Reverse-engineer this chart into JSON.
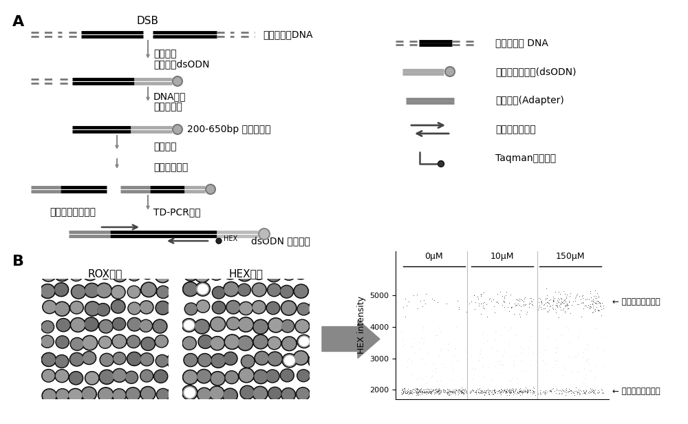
{
  "panel_A_label": "A",
  "panel_B_label": "B",
  "bg_color": "#ffffff",
  "title_DSB": "DSB",
  "text_genomic_DNA": "双链基因组DNA",
  "text_step1a": "未端修复",
  "text_step1b": "原位连接dsODN",
  "text_step2a": "DNA纯化",
  "text_step2b": "超声片段化",
  "text_200_650bp": "200-650bp 基因组片段",
  "text_step3": "未端修复",
  "text_step4": "连接衬接接头",
  "text_adapter_primer": "衬接接头扩增引物",
  "text_TD_PCR": "TD-PCR扩增",
  "text_dsODN_primer": "dsODN 扩增引物",
  "text_HEX": "HEX",
  "legend_genomic": "基因组双链 DNA",
  "legend_dsODN": "外源核苷酸序列(dsODN)",
  "legend_adapter": "衬接接头(Adapter)",
  "legend_primer": "特异性扩增引物",
  "legend_probe": "Taqman荧光探针",
  "panel_B_ROX": "ROX通道",
  "panel_B_HEX": "HEX通道",
  "label_0uM": "0μM",
  "label_10uM": "10μM",
  "label_150uM": "150μM",
  "ylabel_HEX": "HEX intensity",
  "text_positive": "阳性液滴信号强度",
  "text_negative": "阴性液滴信号强度",
  "positive_level": 4800,
  "negative_level": 2000,
  "yticks": [
    2000,
    3000,
    4000,
    5000
  ],
  "ylim": [
    1700,
    5800
  ]
}
